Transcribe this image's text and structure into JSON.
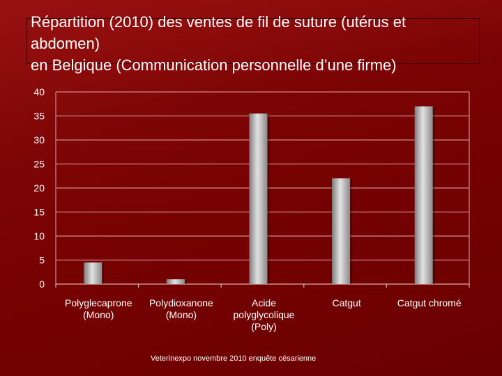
{
  "slide": {
    "title_lines": [
      "Répartition (2010) des ventes de fil de suture (utérus et",
      "abdomen)",
      "en Belgique  (Communication personnelle d’une firme)"
    ],
    "footer": "Veterinexpo novembre 2010 enquête césarienne"
  },
  "chart_data": {
    "type": "bar",
    "categories": [
      [
        "Polyglecaprone",
        "(Mono)"
      ],
      [
        "Polydioxanone",
        "(Mono)"
      ],
      [
        "Acide",
        "polyglycolique",
        "(Poly)"
      ],
      [
        "Catgut"
      ],
      [
        "Catgut chromé"
      ]
    ],
    "values": [
      4.5,
      1,
      35.5,
      22,
      37
    ],
    "ylim": [
      0,
      40
    ],
    "yticks": [
      0,
      5,
      10,
      15,
      20,
      25,
      30,
      35,
      40
    ],
    "grid": true,
    "legend": "none",
    "bar_color": "#a9a9a9",
    "grid_color": "#c98a8a"
  }
}
